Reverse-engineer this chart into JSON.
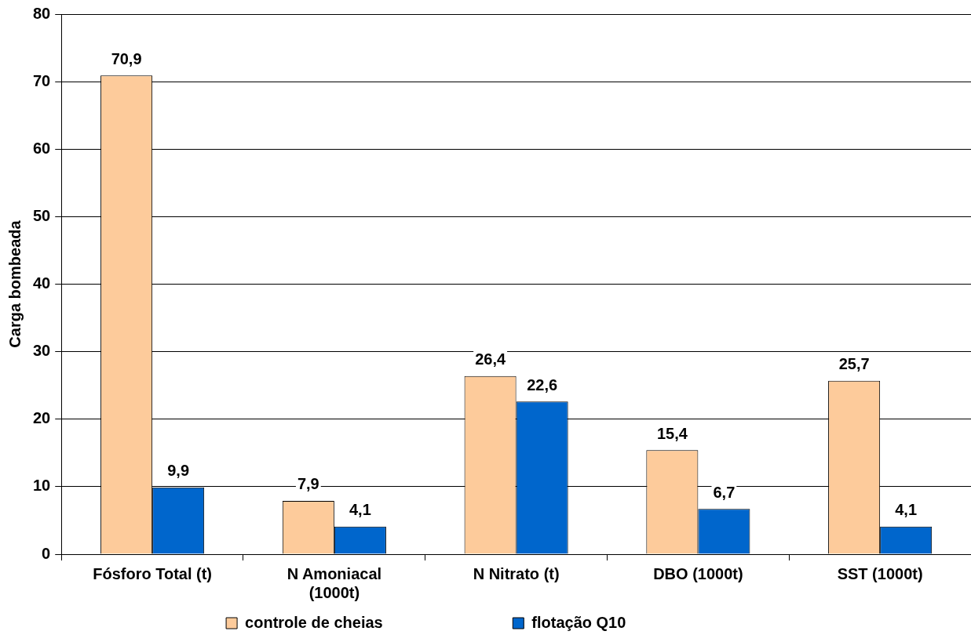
{
  "chart_data": {
    "type": "bar",
    "ylabel": "Carga bombeada",
    "categories": [
      "Fósforo Total (t)",
      "N Amoniacal (1000t)",
      "N Nitrato (t)",
      "DBO (1000t)",
      "SST (1000t)"
    ],
    "series": [
      {
        "name": "controle de cheias",
        "color": "#fdcb9b",
        "values": [
          70.9,
          7.9,
          26.4,
          15.4,
          25.7
        ],
        "value_labels": [
          "70,9",
          "7,9",
          "26,4",
          "15,4",
          "25,7"
        ]
      },
      {
        "name": "flotação Q10",
        "color": "#0066cc",
        "values": [
          9.9,
          4.1,
          22.6,
          6.7,
          4.1
        ],
        "value_labels": [
          "9,9",
          "4,1",
          "22,6",
          "6,7",
          "4,1"
        ]
      }
    ],
    "ylim": [
      0,
      80
    ],
    "yticks": [
      0,
      10,
      20,
      30,
      40,
      50,
      60,
      70,
      80
    ],
    "grid": "y",
    "legend": "bottom"
  }
}
